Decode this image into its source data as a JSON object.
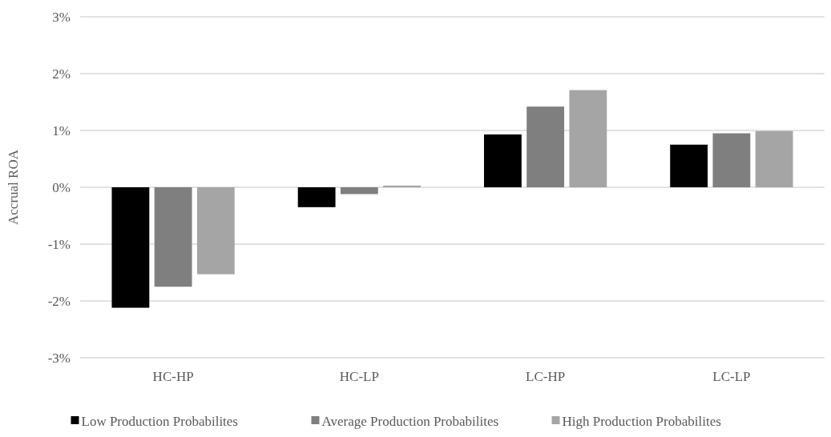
{
  "chart_data": {
    "type": "bar",
    "ylabel": "Accrual ROA",
    "categories": [
      "HC-HP",
      "HC-LP",
      "LC-HP",
      "LC-LP"
    ],
    "series": [
      {
        "name": "Low Production Probabilites",
        "color": "#000000",
        "values": [
          -0.0212,
          -0.0035,
          0.0093,
          0.0075
        ]
      },
      {
        "name": "Average Production Probabilites",
        "color": "#7f7f7f",
        "values": [
          -0.0175,
          -0.0012,
          0.0142,
          0.0095
        ]
      },
      {
        "name": "High Production Probabilites",
        "color": "#a5a5a5",
        "values": [
          -0.0153,
          0.0003,
          0.0171,
          0.0099
        ]
      }
    ],
    "ylim": [
      -0.03,
      0.03
    ],
    "yticks": [
      {
        "value": -0.03,
        "label": "-3%"
      },
      {
        "value": -0.02,
        "label": "-2%"
      },
      {
        "value": -0.01,
        "label": "-1%"
      },
      {
        "value": 0,
        "label": "0%"
      },
      {
        "value": 0.01,
        "label": "1%"
      },
      {
        "value": 0.02,
        "label": "2%"
      },
      {
        "value": 0.03,
        "label": "3%"
      }
    ],
    "grid": "y",
    "legend": "bottom"
  }
}
